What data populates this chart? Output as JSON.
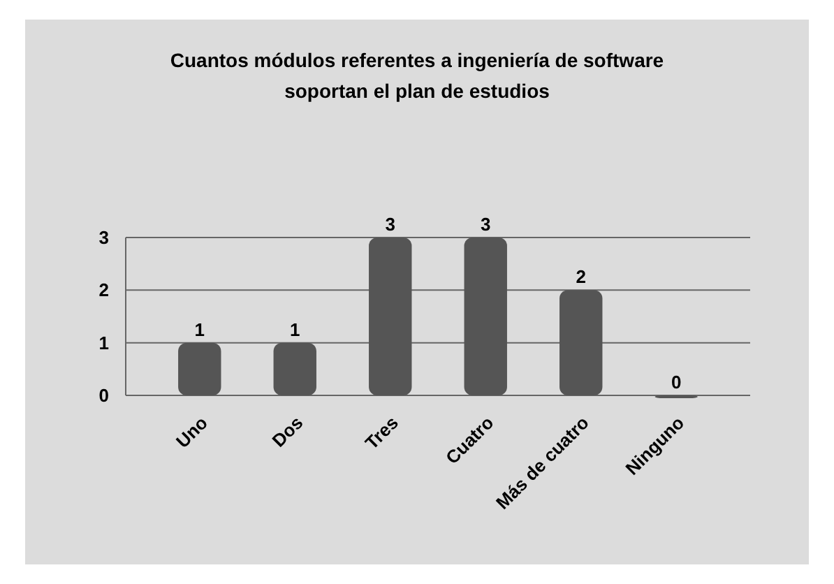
{
  "chart_data": {
    "type": "bar",
    "title": "Cuantos módulos referentes a ingeniería de software\nsoportan  el plan de estudios",
    "categories": [
      "Uno",
      "Dos",
      "Tres",
      "Cuatro",
      "Más de cuatro",
      "Ninguno"
    ],
    "values": [
      1,
      1,
      3,
      3,
      2,
      0
    ],
    "color": "#555555",
    "ylim": [
      0,
      3
    ],
    "yticks": [
      0,
      1,
      2,
      3
    ],
    "grid": "y",
    "data_labels": true
  }
}
